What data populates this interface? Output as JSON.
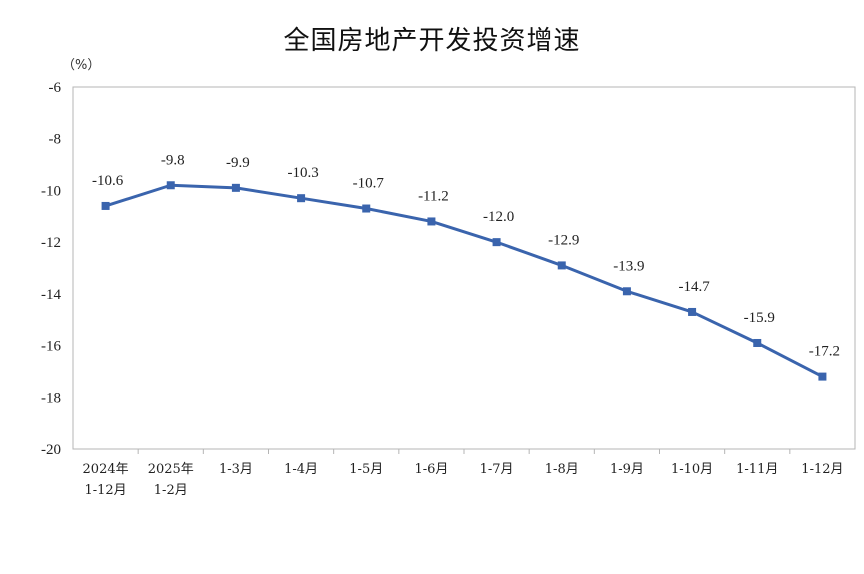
{
  "title": "全国房地产开发投资增速",
  "chart_data": {
    "type": "line",
    "title": "全国房地产开发投资增速",
    "unit_label": "（%）",
    "xlabel": "",
    "ylabel": "",
    "ylim": [
      -20,
      -6
    ],
    "yticks": [
      -6,
      -8,
      -10,
      -12,
      -14,
      -16,
      -18,
      -20
    ],
    "grid": false,
    "line_color": "#3a64ad",
    "categories": [
      [
        "2024年",
        "1-12月"
      ],
      [
        "2025年",
        "1-2月"
      ],
      [
        "1-3月"
      ],
      [
        "1-4月"
      ],
      [
        "1-5月"
      ],
      [
        "1-6月"
      ],
      [
        "1-7月"
      ],
      [
        "1-8月"
      ],
      [
        "1-9月"
      ],
      [
        "1-10月"
      ],
      [
        "1-11月"
      ],
      [
        "1-12月"
      ]
    ],
    "values": [
      -10.6,
      -9.8,
      -9.9,
      -10.3,
      -10.7,
      -11.2,
      -12.0,
      -12.9,
      -13.9,
      -14.7,
      -15.9,
      -17.2
    ],
    "value_labels": [
      "-10.6",
      "-9.8",
      "-9.9",
      "-10.3",
      "-10.7",
      "-11.2",
      "-12.0",
      "-12.9",
      "-13.9",
      "-14.7",
      "-15.9",
      "-17.2"
    ]
  }
}
